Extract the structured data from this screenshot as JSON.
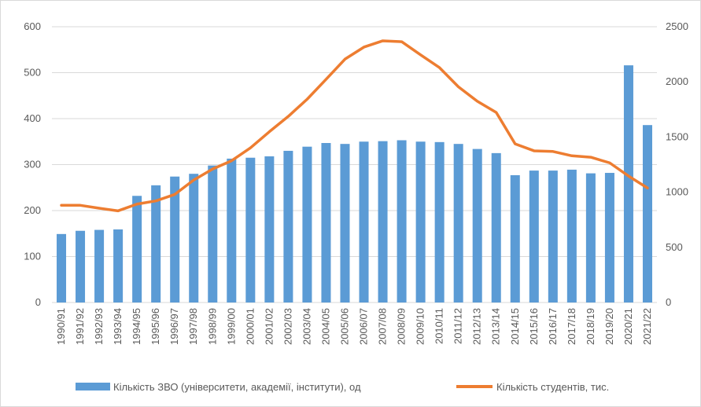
{
  "chart_data": {
    "type": "bar",
    "categories": [
      "1990/91",
      "1991/92",
      "1992/93",
      "1993/94",
      "1994/95",
      "1995/96",
      "1996/97",
      "1997/98",
      "1998/99",
      "1999/00",
      "2000/01",
      "2001/02",
      "2002/03",
      "2003/04",
      "2004/05",
      "2005/06",
      "2006/07",
      "2007/08",
      "2008/09",
      "2009/10",
      "2010/11",
      "2011/12",
      "2012/13",
      "2013/14",
      "2014/15",
      "2015/16",
      "2016/17",
      "2017/18",
      "2018/19",
      "2019/20",
      "2020/21",
      "2021/22"
    ],
    "series": [
      {
        "name": "Кількість ЗВО (університети, академії, інститути), од",
        "type": "bar",
        "axis": "left",
        "color": "#5b9bd5",
        "values": [
          149,
          156,
          158,
          159,
          232,
          255,
          274,
          280,
          298,
          313,
          315,
          318,
          330,
          339,
          347,
          345,
          350,
          351,
          353,
          350,
          349,
          345,
          334,
          325,
          277,
          287,
          287,
          289,
          281,
          282,
          516,
          386
        ]
      },
      {
        "name": "Кількість студентів, тис.",
        "type": "line",
        "axis": "right",
        "color": "#ed7d31",
        "values": [
          881,
          881,
          855,
          831,
          892,
          921,
          980,
          1110,
          1210,
          1285,
          1402,
          1548,
          1687,
          1843,
          2023,
          2206,
          2315,
          2372,
          2364,
          2245,
          2129,
          1955,
          1824,
          1723,
          1438,
          1375,
          1369,
          1330,
          1317,
          1266,
          1146,
          1038
        ]
      }
    ],
    "y_left": {
      "ticks": [
        "0",
        "100",
        "200",
        "300",
        "400",
        "500",
        "600"
      ],
      "min": 0,
      "max": 600
    },
    "y_right": {
      "ticks": [
        "0",
        "500",
        "1000",
        "1500",
        "2000",
        "2500"
      ],
      "min": 0,
      "max": 2500
    },
    "grid": true,
    "legend_position": "bottom"
  }
}
